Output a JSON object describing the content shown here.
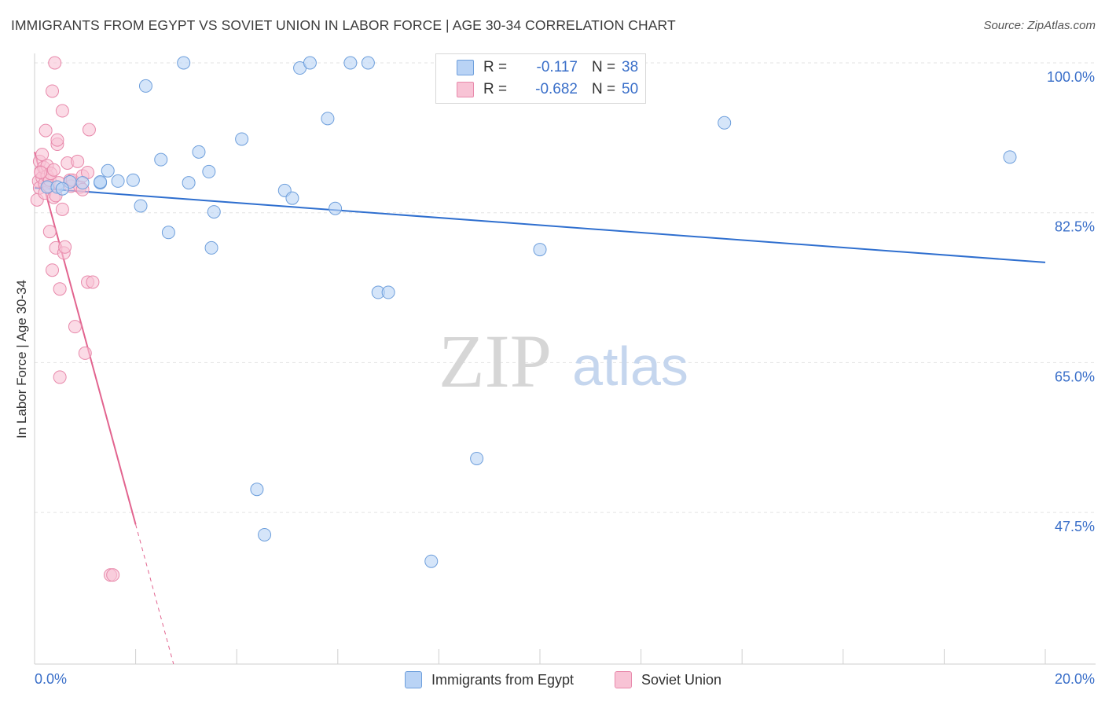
{
  "title": "IMMIGRANTS FROM EGYPT VS SOVIET UNION IN LABOR FORCE | AGE 30-34 CORRELATION CHART",
  "source": "Source: ZipAtlas.com",
  "watermark": {
    "zip": "ZIP",
    "atlas": "atlas"
  },
  "legend": {
    "series1": {
      "r_label": "R =",
      "r_value": "-0.117",
      "n_label": "N =",
      "n_value": "38"
    },
    "series2": {
      "r_label": "R =",
      "r_value": "-0.682",
      "n_label": "N =",
      "n_value": "50"
    }
  },
  "colors": {
    "blue_fill": "#b9d3f5",
    "blue_stroke": "#6e9fdc",
    "blue_line": "#2f6fcf",
    "pink_fill": "#f8c3d5",
    "pink_stroke": "#e889ab",
    "pink_line": "#e2648f",
    "tick_text": "#3a6fc9",
    "grid": "#e3e3e3"
  },
  "chart_data": {
    "type": "scatter",
    "title": "IMMIGRANTS FROM EGYPT VS SOVIET UNION IN LABOR FORCE | AGE 30-34 CORRELATION CHART",
    "xlabel": "",
    "ylabel": "In Labor Force | Age 30-34",
    "xlim": [
      0,
      20
    ],
    "ylim": [
      29.8,
      100
    ],
    "x_tick_labels": [
      "0.0%",
      "20.0%"
    ],
    "y_ticks": [
      47.5,
      65.0,
      82.5,
      100.0
    ],
    "y_tick_labels": [
      "47.5%",
      "65.0%",
      "82.5%",
      "100.0%"
    ],
    "legend_position": "top-center",
    "series": [
      {
        "name": "Immigrants from Egypt",
        "r": -0.117,
        "n": 38,
        "trend": {
          "x": [
            0,
            20
          ],
          "y": [
            85.4,
            76.7
          ]
        },
        "points": [
          [
            0.25,
            85.5
          ],
          [
            0.45,
            85.5
          ],
          [
            0.7,
            86.1
          ],
          [
            0.95,
            86.0
          ],
          [
            1.3,
            86.0
          ],
          [
            1.45,
            87.4
          ],
          [
            1.65,
            86.2
          ],
          [
            1.95,
            86.3
          ],
          [
            2.1,
            83.3
          ],
          [
            2.2,
            97.3
          ],
          [
            2.5,
            88.7
          ],
          [
            2.65,
            80.2
          ],
          [
            2.95,
            100.0
          ],
          [
            3.05,
            86.0
          ],
          [
            3.25,
            89.6
          ],
          [
            3.45,
            87.3
          ],
          [
            3.55,
            82.6
          ],
          [
            3.5,
            78.4
          ],
          [
            4.1,
            91.1
          ],
          [
            4.4,
            50.2
          ],
          [
            4.55,
            44.9
          ],
          [
            4.95,
            85.1
          ],
          [
            5.1,
            84.2
          ],
          [
            5.25,
            99.4
          ],
          [
            5.45,
            100.0
          ],
          [
            5.8,
            93.5
          ],
          [
            5.95,
            83.0
          ],
          [
            6.25,
            100.0
          ],
          [
            6.6,
            100.0
          ],
          [
            6.8,
            73.2
          ],
          [
            7.0,
            73.2
          ],
          [
            7.85,
            41.8
          ],
          [
            8.75,
            53.8
          ],
          [
            10.0,
            78.2
          ],
          [
            13.65,
            93.0
          ],
          [
            19.3,
            89.0
          ],
          [
            0.55,
            85.3
          ],
          [
            1.3,
            86.1
          ]
        ]
      },
      {
        "name": "Soviet Union",
        "r": -0.682,
        "n": 50,
        "trend": {
          "x": [
            0,
            2.0
          ],
          "y": [
            89.6,
            46.1
          ]
        },
        "trend_dashed": {
          "x": [
            2.0,
            2.75
          ],
          "y": [
            46.1,
            29.8
          ]
        },
        "points": [
          [
            0.05,
            84.0
          ],
          [
            0.08,
            86.2
          ],
          [
            0.1,
            88.5
          ],
          [
            0.1,
            85.4
          ],
          [
            0.12,
            87.3
          ],
          [
            0.15,
            86.6
          ],
          [
            0.15,
            89.3
          ],
          [
            0.18,
            87.8
          ],
          [
            0.2,
            85.9
          ],
          [
            0.2,
            84.8
          ],
          [
            0.22,
            92.1
          ],
          [
            0.25,
            88.0
          ],
          [
            0.25,
            86.8
          ],
          [
            0.28,
            85.6
          ],
          [
            0.3,
            86.3
          ],
          [
            0.3,
            80.3
          ],
          [
            0.32,
            87.1
          ],
          [
            0.35,
            96.7
          ],
          [
            0.35,
            75.8
          ],
          [
            0.38,
            84.3
          ],
          [
            0.38,
            87.5
          ],
          [
            0.4,
            100.0
          ],
          [
            0.42,
            84.5
          ],
          [
            0.42,
            78.4
          ],
          [
            0.45,
            90.5
          ],
          [
            0.45,
            91.0
          ],
          [
            0.48,
            86.0
          ],
          [
            0.5,
            73.6
          ],
          [
            0.5,
            63.3
          ],
          [
            0.55,
            94.4
          ],
          [
            0.55,
            82.9
          ],
          [
            0.58,
            77.8
          ],
          [
            0.6,
            78.5
          ],
          [
            0.65,
            88.3
          ],
          [
            0.7,
            86.3
          ],
          [
            0.72,
            85.6
          ],
          [
            0.75,
            86.3
          ],
          [
            0.8,
            69.2
          ],
          [
            0.85,
            88.5
          ],
          [
            0.9,
            85.5
          ],
          [
            0.95,
            86.8
          ],
          [
            0.95,
            85.2
          ],
          [
            1.05,
            87.2
          ],
          [
            1.0,
            66.1
          ],
          [
            1.05,
            74.4
          ],
          [
            1.08,
            92.2
          ],
          [
            1.15,
            74.4
          ],
          [
            1.5,
            40.2
          ],
          [
            1.55,
            40.2
          ],
          [
            0.12,
            87.2
          ]
        ]
      }
    ]
  }
}
